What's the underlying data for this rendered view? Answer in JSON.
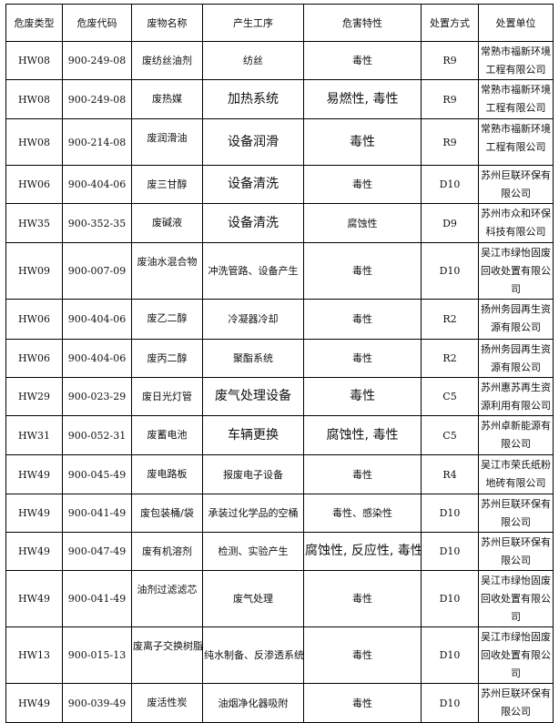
{
  "headers": [
    "危废类型",
    "危废代码",
    "废物名称",
    "产生工序",
    "危害特性",
    "处置方式",
    "处置单位"
  ],
  "rows": [
    {
      "type": "HW08",
      "code": "900-249-08",
      "name": "废纺丝油剂",
      "process": "纺丝",
      "hazard": "毒性",
      "method": "R9",
      "unit": "常熟市福新环境工程有限公司",
      "big_process": false,
      "big_hazard": false
    },
    {
      "type": "HW08",
      "code": "900-249-08",
      "name": "废热媒",
      "process": "加热系统",
      "hazard": "易燃性, 毒性",
      "method": "R9",
      "unit": "常熟市福新环境工程有限公司",
      "big_process": true,
      "big_hazard": true
    },
    {
      "type": "HW08",
      "code": "900-214-08",
      "name": "废润滑油",
      "process": "设备润滑",
      "hazard": "毒性",
      "method": "R9",
      "unit": "常熟市福新环境工程有限公司",
      "big_process": true,
      "big_hazard": true
    },
    {
      "type": "HW06",
      "code": "900-404-06",
      "name": "废三甘醇",
      "process": "设备清洗",
      "hazard": "毒性",
      "method": "D10",
      "unit": "苏州巨联环保有限公司",
      "big_process": true,
      "big_hazard": false
    },
    {
      "type": "HW35",
      "code": "900-352-35",
      "name": "废碱液",
      "process": "设备清洗",
      "hazard": "腐蚀性",
      "method": "D9",
      "unit": "苏州市众和环保科技有限公司",
      "big_process": true,
      "big_hazard": false
    },
    {
      "type": "HW09",
      "code": "900-007-09",
      "name": "废油水混合物",
      "process": "冲洗管路、设备产生",
      "hazard": "毒性",
      "method": "D10",
      "unit": "吴江市绿怡固废回收处置有限公司",
      "big_process": false,
      "big_hazard": false
    },
    {
      "type": "HW06",
      "code": "900-404-06",
      "name": "废乙二醇",
      "process": "冷凝器冷却",
      "hazard": "毒性",
      "method": "R2",
      "unit": "扬州务园再生资源有限公司",
      "big_process": false,
      "big_hazard": false
    },
    {
      "type": "HW06",
      "code": "900-404-06",
      "name": "废丙二醇",
      "process": "聚酯系统",
      "hazard": "毒性",
      "method": "R2",
      "unit": "扬州务园再生资源有限公司",
      "big_process": false,
      "big_hazard": false
    },
    {
      "type": "HW29",
      "code": "900-023-29",
      "name": "废日光灯管",
      "process": "废气处理设备",
      "hazard": "毒性",
      "method": "C5",
      "unit": "苏州惠苏再生资源利用有限公司",
      "big_process": true,
      "big_hazard": true
    },
    {
      "type": "HW31",
      "code": "900-052-31",
      "name": "废蓄电池",
      "process": "车辆更换",
      "hazard": "腐蚀性, 毒性",
      "method": "C5",
      "unit": "苏州卓新能源有限公司",
      "big_process": true,
      "big_hazard": true
    },
    {
      "type": "HW49",
      "code": "900-045-49",
      "name": "废电路板",
      "process": "报废电子设备",
      "hazard": "毒性",
      "method": "R4",
      "unit": "吴江市荣氏纸粉地砖有限公司",
      "big_process": false,
      "big_hazard": false
    },
    {
      "type": "HW49",
      "code": "900-041-49",
      "name": "废包装桶/袋",
      "process": "承装过化学品的空桶",
      "hazard": "毒性、感染性",
      "method": "D10",
      "unit": "苏州巨联环保有限公司",
      "big_process": false,
      "big_hazard": false
    },
    {
      "type": "HW49",
      "code": "900-047-49",
      "name": "废有机溶剂",
      "process": "检测、实验产生",
      "hazard": "腐蚀性, 反应性, 毒性",
      "method": "D10",
      "unit": "苏州巨联环保有限公司",
      "big_process": false,
      "big_hazard": true
    },
    {
      "type": "HW49",
      "code": "900-041-49",
      "name": "油剂过滤滤芯",
      "process": "废气处理",
      "hazard": "毒性",
      "method": "D10",
      "unit": "吴江市绿怡固废回收处置有限公司",
      "big_process": false,
      "big_hazard": false
    },
    {
      "type": "HW13",
      "code": "900-015-13",
      "name": "废离子交换树脂",
      "process": "纯水制备、反渗透系统",
      "hazard": "毒性",
      "method": "D10",
      "unit": "吴江市绿怡固废回收处置有限公司",
      "big_process": false,
      "big_hazard": false
    },
    {
      "type": "HW49",
      "code": "900-039-49",
      "name": "废活性炭",
      "process": "油烟净化器吸附",
      "hazard": "毒性",
      "method": "D10",
      "unit": "苏州巨联环保有限公司",
      "big_process": false,
      "big_hazard": false
    }
  ]
}
